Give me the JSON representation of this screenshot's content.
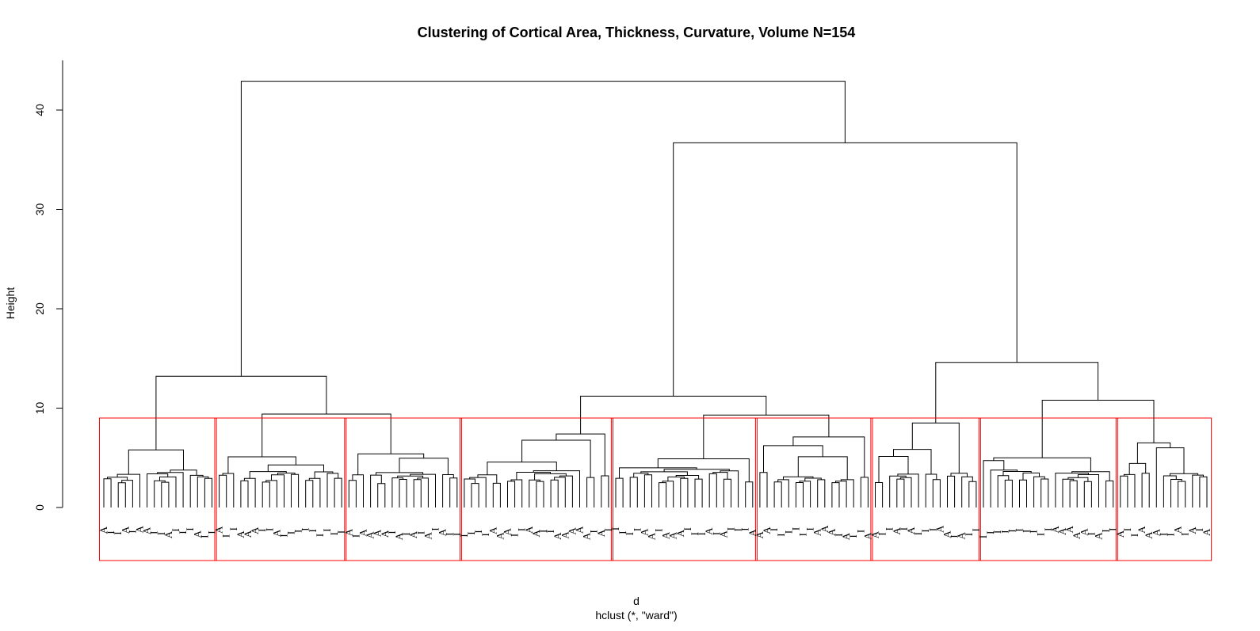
{
  "chart_data": {
    "type": "dendrogram",
    "title": "Clustering of Cortical Area, Thickness, Curvature, Volume N=154",
    "xlabel": "d",
    "sublabel": "hclust (*, \"ward\")",
    "ylabel": "Height",
    "ylim": [
      0,
      45
    ],
    "yticks": [
      0,
      10,
      20,
      30,
      40
    ],
    "n_leaves": 154,
    "leaf_label_alphabet": [
      "I",
      "A"
    ],
    "top_merges": [
      {
        "group": "root",
        "height": 42.9
      },
      {
        "group": "right",
        "height": 36.7
      },
      {
        "group": "left",
        "height": 13.2
      },
      {
        "group": "right-right",
        "height": 14.6
      },
      {
        "group": "middle",
        "height": 11.2
      },
      {
        "group": "right-right-b",
        "height": 10.8
      }
    ],
    "cut_height": 9.0,
    "clusters": [
      {
        "id": 1,
        "size": 16,
        "merge_height": 5.8
      },
      {
        "id": 2,
        "size": 18,
        "merge_height": 5.1
      },
      {
        "id": 3,
        "size": 16,
        "merge_height": 5.4
      },
      {
        "id": 4,
        "size": 21,
        "merge_height": 7.4
      },
      {
        "id": 5,
        "size": 20,
        "merge_height": 4.9
      },
      {
        "id": 6,
        "size": 16,
        "merge_height": 7.1
      },
      {
        "id": 7,
        "size": 15,
        "merge_height": 8.5
      },
      {
        "id": 8,
        "size": 19,
        "merge_height": 5.0
      },
      {
        "id": 9,
        "size": 13,
        "merge_height": 6.5
      }
    ],
    "rect_color": "#ff0000",
    "line_color": "#000000"
  }
}
